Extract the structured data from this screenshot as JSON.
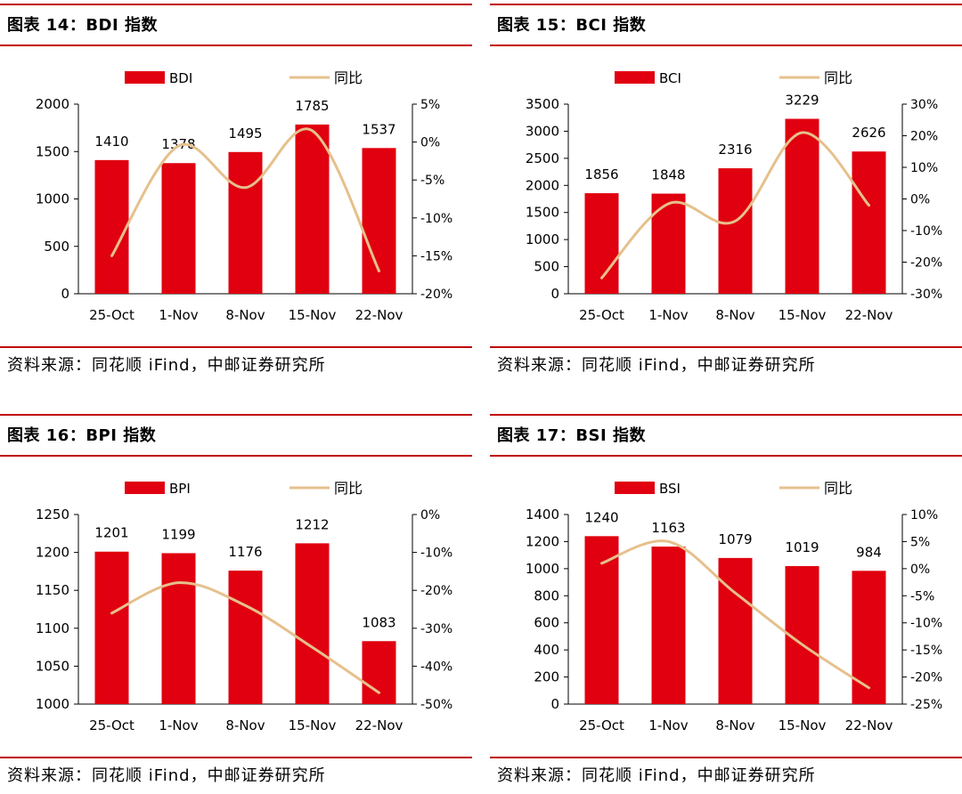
{
  "colors": {
    "bar": "#e0000f",
    "line": "#e6c08c",
    "rule": "#c00000"
  },
  "panels": [
    {
      "title": "图表 14：BDI 指数",
      "source": "资料来源：同花顺 iFind，中邮证券研究所",
      "chart_data": {
        "type": "bar",
        "categories": [
          "25-Oct",
          "1-Nov",
          "8-Nov",
          "15-Nov",
          "22-Nov"
        ],
        "series": [
          {
            "name": "BDI",
            "type": "bar",
            "axis": "left",
            "values": [
              1410,
              1378,
              1495,
              1785,
              1537
            ]
          },
          {
            "name": "同比",
            "type": "line",
            "axis": "right",
            "values": [
              -15,
              -0.5,
              -6,
              1.5,
              -17
            ]
          }
        ],
        "left_axis": {
          "min": 0,
          "max": 2000,
          "step": 500,
          "ticks": [
            "0",
            "500",
            "1000",
            "1500",
            "2000"
          ]
        },
        "right_axis": {
          "min": -20,
          "max": 5,
          "step": 5,
          "ticks": [
            "-20%",
            "-15%",
            "-10%",
            "-5%",
            "0%",
            "5%"
          ]
        }
      }
    },
    {
      "title": "图表 15：BCI 指数",
      "source": "资料来源：同花顺 iFind，中邮证券研究所",
      "chart_data": {
        "type": "bar",
        "categories": [
          "25-Oct",
          "1-Nov",
          "8-Nov",
          "15-Nov",
          "22-Nov"
        ],
        "series": [
          {
            "name": "BCI",
            "type": "bar",
            "axis": "left",
            "values": [
              1856,
              1848,
              2316,
              3229,
              2626
            ]
          },
          {
            "name": "同比",
            "type": "line",
            "axis": "right",
            "values": [
              -25,
              -1.5,
              -7,
              21,
              -2
            ]
          }
        ],
        "left_axis": {
          "min": 0,
          "max": 3500,
          "step": 500,
          "ticks": [
            "0",
            "500",
            "1000",
            "1500",
            "2000",
            "2500",
            "3000",
            "3500"
          ]
        },
        "right_axis": {
          "min": -30,
          "max": 30,
          "step": 10,
          "ticks": [
            "-30%",
            "-20%",
            "-10%",
            "0%",
            "10%",
            "20%",
            "30%"
          ]
        }
      }
    },
    {
      "title": "图表 16：BPI 指数",
      "source": "资料来源：同花顺 iFind，中邮证券研究所",
      "chart_data": {
        "type": "bar",
        "categories": [
          "25-Oct",
          "1-Nov",
          "8-Nov",
          "15-Nov",
          "22-Nov"
        ],
        "series": [
          {
            "name": "BPI",
            "type": "bar",
            "axis": "left",
            "values": [
              1201,
              1199,
              1176,
              1212,
              1083
            ]
          },
          {
            "name": "同比",
            "type": "line",
            "axis": "right",
            "values": [
              -26,
              -18,
              -24,
              -35,
              -47
            ]
          }
        ],
        "left_axis": {
          "min": 1000,
          "max": 1250,
          "step": 50,
          "ticks": [
            "1000",
            "1050",
            "1100",
            "1150",
            "1200",
            "1250"
          ]
        },
        "right_axis": {
          "min": -50,
          "max": 0,
          "step": 10,
          "ticks": [
            "-50%",
            "-40%",
            "-30%",
            "-20%",
            "-10%",
            "0%"
          ]
        }
      }
    },
    {
      "title": "图表 17：BSI 指数",
      "source": "资料来源：同花顺 iFind，中邮证券研究所",
      "chart_data": {
        "type": "bar",
        "categories": [
          "25-Oct",
          "1-Nov",
          "8-Nov",
          "15-Nov",
          "22-Nov"
        ],
        "series": [
          {
            "name": "BSI",
            "type": "bar",
            "axis": "left",
            "values": [
              1240,
              1163,
              1079,
              1019,
              984
            ]
          },
          {
            "name": "同比",
            "type": "line",
            "axis": "right",
            "values": [
              1,
              5,
              -4.5,
              -14,
              -22
            ]
          }
        ],
        "left_axis": {
          "min": 0,
          "max": 1400,
          "step": 200,
          "ticks": [
            "0",
            "200",
            "400",
            "600",
            "800",
            "1000",
            "1200",
            "1400"
          ]
        },
        "right_axis": {
          "min": -25,
          "max": 10,
          "step": 5,
          "ticks": [
            "-25%",
            "-20%",
            "-15%",
            "-10%",
            "-5%",
            "0%",
            "5%",
            "10%"
          ]
        }
      }
    }
  ]
}
